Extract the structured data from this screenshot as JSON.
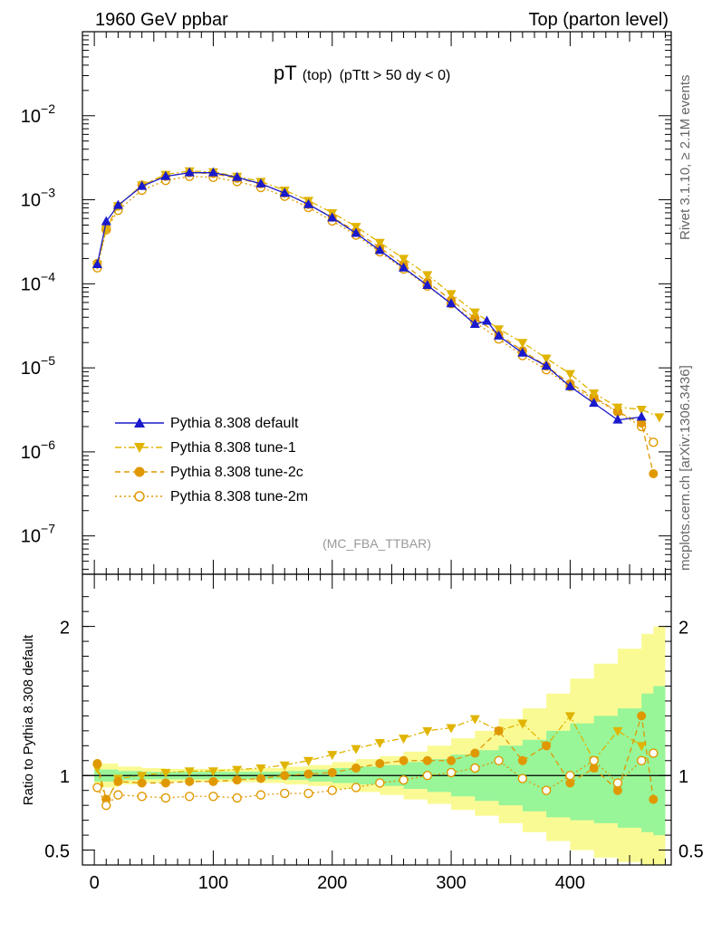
{
  "header": {
    "left": "1960 GeV ppbar",
    "right": "Top (parton level)"
  },
  "side": {
    "rivet": "Rivet 3.1.10, ≥ 2.1M events",
    "mcplots": "mcplots.cern.ch [arXiv:1306.3436]"
  },
  "chart_data": [
    {
      "type": "scatter",
      "title_main": "pT",
      "title_sub": "(top)",
      "title_cut": "(pTtt > 50 dy < 0)",
      "watermark": "(MC_FBA_TTBAR)",
      "xlabel": "",
      "ylabel": "",
      "xlim": [
        -10,
        485
      ],
      "ylim": [
        3.5e-08,
        0.1
      ],
      "yscale": "log",
      "y_ticks": [
        {
          "v": 1e-07,
          "mant": "10",
          "exp": "−7"
        },
        {
          "v": 1e-06,
          "mant": "10",
          "exp": "−6"
        },
        {
          "v": 1e-05,
          "mant": "10",
          "exp": "−5"
        },
        {
          "v": 0.0001,
          "mant": "10",
          "exp": "−4"
        },
        {
          "v": 0.001,
          "mant": "10",
          "exp": "−3"
        },
        {
          "v": 0.01,
          "mant": "10",
          "exp": "−2"
        }
      ],
      "x_ticks": [
        0,
        100,
        200,
        300,
        400
      ],
      "x_tick_labels": [
        "0",
        "100",
        "200",
        "300",
        "400"
      ],
      "legend_position": "bottom-left",
      "series": [
        {
          "name": "Pythia 8.308 default",
          "color": "#1a1acc",
          "marker": "triangle-up",
          "line": "solid",
          "x": [
            2.5,
            10,
            20,
            40,
            60,
            80,
            100,
            120,
            140,
            160,
            180,
            200,
            220,
            240,
            260,
            280,
            300,
            320,
            330,
            340,
            360,
            380,
            400,
            420,
            440,
            460
          ],
          "y": [
            0.00017,
            0.00055,
            0.00086,
            0.00145,
            0.0019,
            0.0021,
            0.0021,
            0.00185,
            0.00155,
            0.0012,
            0.00088,
            0.00061,
            0.0004,
            0.00025,
            0.000155,
            9.6e-05,
            5.8e-05,
            3.3e-05,
            3.6e-05,
            2.4e-05,
            1.5e-05,
            1.05e-05,
            6e-06,
            3.8e-06,
            2.4e-06,
            2.6e-06
          ]
        },
        {
          "name": "Pythia 8.308 tune-1",
          "color": "#e0b400",
          "marker": "triangle-down",
          "line": "dashdot",
          "x": [
            2.5,
            10,
            20,
            40,
            60,
            80,
            100,
            120,
            140,
            160,
            180,
            200,
            220,
            240,
            260,
            280,
            300,
            320,
            340,
            360,
            380,
            400,
            420,
            440,
            460,
            475
          ],
          "y": [
            0.00017,
            0.00044,
            0.00085,
            0.0015,
            0.002,
            0.0022,
            0.00215,
            0.0019,
            0.00165,
            0.0013,
            0.00098,
            0.0007,
            0.00048,
            0.00031,
            0.0002,
            0.000128,
            7.6e-05,
            4.6e-05,
            2.9e-05,
            2e-05,
            1.3e-05,
            8.5e-06,
            5e-06,
            3.4e-06,
            3.2e-06,
            2.6e-06
          ]
        },
        {
          "name": "Pythia 8.308 tune-2c",
          "color": "#e09800",
          "marker": "circle",
          "line": "dashed",
          "x": [
            2.5,
            10,
            20,
            40,
            60,
            80,
            100,
            120,
            140,
            160,
            180,
            200,
            220,
            240,
            260,
            280,
            300,
            320,
            340,
            360,
            380,
            400,
            420,
            440,
            460,
            470
          ],
          "y": [
            0.000175,
            0.00046,
            0.00084,
            0.0015,
            0.0019,
            0.0021,
            0.00205,
            0.0018,
            0.00155,
            0.0012,
            0.00088,
            0.00062,
            0.00042,
            0.00027,
            0.00017,
            0.000105,
            6.4e-05,
            3.9e-05,
            2.5e-05,
            1.6e-05,
            1.05e-05,
            6.5e-06,
            4.5e-06,
            3e-06,
            2.2e-06,
            5.5e-07
          ]
        },
        {
          "name": "Pythia 8.308 tune-2m",
          "color": "#e09800",
          "marker": "open-circle",
          "line": "dotted",
          "x": [
            2.5,
            10,
            20,
            40,
            60,
            80,
            100,
            120,
            140,
            160,
            180,
            200,
            220,
            240,
            260,
            280,
            300,
            320,
            340,
            360,
            380,
            400,
            420,
            440,
            460,
            470
          ],
          "y": [
            0.000155,
            0.00044,
            0.00075,
            0.0013,
            0.0017,
            0.0019,
            0.00185,
            0.00165,
            0.0014,
            0.0011,
            0.00081,
            0.00056,
            0.00038,
            0.00024,
            0.00015,
            9.4e-05,
            5.8e-05,
            3.5e-05,
            2.2e-05,
            1.4e-05,
            9.5e-06,
            6e-06,
            4.3e-06,
            3e-06,
            2e-06,
            1.3e-06
          ]
        }
      ]
    },
    {
      "type": "scatter",
      "xlabel": "",
      "ylabel": "Ratio to Pythia 8.308 default",
      "xlim": [
        -10,
        485
      ],
      "ylim": [
        0.4,
        2.35
      ],
      "y_ticks": [
        0.5,
        1,
        2
      ],
      "y_tick_labels": [
        "0.5",
        "1",
        "2"
      ],
      "reference_line": 1.0,
      "bands": [
        {
          "name": "stat-narrow",
          "color": "#98f598",
          "x": [
            0,
            20,
            40,
            60,
            80,
            100,
            120,
            140,
            160,
            180,
            200,
            220,
            240,
            260,
            280,
            300,
            320,
            340,
            360,
            380,
            400,
            420,
            440,
            460,
            470
          ],
          "lo": [
            0.96,
            0.97,
            0.975,
            0.975,
            0.975,
            0.975,
            0.975,
            0.975,
            0.97,
            0.96,
            0.95,
            0.94,
            0.93,
            0.91,
            0.89,
            0.86,
            0.83,
            0.8,
            0.76,
            0.72,
            0.7,
            0.68,
            0.65,
            0.62,
            0.6
          ],
          "hi": [
            1.04,
            1.03,
            1.025,
            1.025,
            1.025,
            1.025,
            1.025,
            1.025,
            1.03,
            1.04,
            1.05,
            1.06,
            1.07,
            1.09,
            1.11,
            1.14,
            1.17,
            1.2,
            1.24,
            1.3,
            1.35,
            1.4,
            1.45,
            1.55,
            1.6
          ]
        },
        {
          "name": "stat-wide",
          "color": "#fafa94",
          "x": [
            0,
            20,
            40,
            60,
            80,
            100,
            120,
            140,
            160,
            180,
            200,
            220,
            240,
            260,
            280,
            300,
            320,
            340,
            360,
            380,
            400,
            420,
            440,
            460,
            470
          ],
          "lo": [
            0.92,
            0.94,
            0.95,
            0.955,
            0.955,
            0.955,
            0.955,
            0.95,
            0.94,
            0.93,
            0.91,
            0.89,
            0.87,
            0.84,
            0.81,
            0.77,
            0.73,
            0.68,
            0.62,
            0.56,
            0.5,
            0.45,
            0.42,
            0.4,
            0.4
          ],
          "hi": [
            1.08,
            1.06,
            1.05,
            1.045,
            1.045,
            1.045,
            1.045,
            1.05,
            1.06,
            1.07,
            1.09,
            1.11,
            1.13,
            1.16,
            1.2,
            1.25,
            1.3,
            1.38,
            1.45,
            1.55,
            1.65,
            1.75,
            1.85,
            1.95,
            2.0
          ]
        }
      ],
      "series": [
        {
          "name": "Pythia 8.308 tune-1",
          "color": "#e0b400",
          "marker": "triangle-down",
          "line": "dashdot",
          "x": [
            2.5,
            10,
            20,
            40,
            60,
            80,
            100,
            120,
            140,
            160,
            180,
            200,
            220,
            240,
            260,
            280,
            300,
            320,
            340,
            360,
            380,
            400,
            420,
            440,
            460
          ],
          "y": [
            1.05,
            0.82,
            0.98,
            1.0,
            1.02,
            1.03,
            1.03,
            1.04,
            1.05,
            1.07,
            1.1,
            1.14,
            1.18,
            1.22,
            1.25,
            1.3,
            1.32,
            1.38,
            1.3,
            1.35,
            1.2,
            1.4,
            1.1,
            1.3,
            1.2
          ]
        },
        {
          "name": "Pythia 8.308 tune-2c",
          "color": "#e09800",
          "marker": "circle",
          "line": "dashed",
          "x": [
            2.5,
            10,
            20,
            40,
            60,
            80,
            100,
            120,
            140,
            160,
            180,
            200,
            220,
            240,
            260,
            280,
            300,
            320,
            340,
            360,
            380,
            400,
            420,
            440,
            460,
            470
          ],
          "y": [
            1.08,
            0.84,
            0.96,
            0.95,
            0.95,
            0.96,
            0.96,
            0.97,
            0.98,
            1.0,
            1.01,
            1.02,
            1.05,
            1.08,
            1.1,
            1.1,
            1.1,
            1.15,
            1.3,
            1.1,
            1.2,
            0.95,
            1.05,
            0.9,
            1.4,
            0.84
          ]
        },
        {
          "name": "Pythia 8.308 tune-2m",
          "color": "#e09800",
          "marker": "open-circle",
          "line": "dotted",
          "x": [
            2.5,
            10,
            20,
            40,
            60,
            80,
            100,
            120,
            140,
            160,
            180,
            200,
            220,
            240,
            260,
            280,
            300,
            320,
            340,
            360,
            380,
            400,
            420,
            440,
            460,
            470
          ],
          "y": [
            0.92,
            0.8,
            0.87,
            0.86,
            0.85,
            0.86,
            0.86,
            0.85,
            0.87,
            0.88,
            0.88,
            0.9,
            0.92,
            0.95,
            0.97,
            1.0,
            1.02,
            1.05,
            1.1,
            0.98,
            0.9,
            1.0,
            1.1,
            0.95,
            1.1,
            1.15
          ]
        }
      ]
    }
  ]
}
